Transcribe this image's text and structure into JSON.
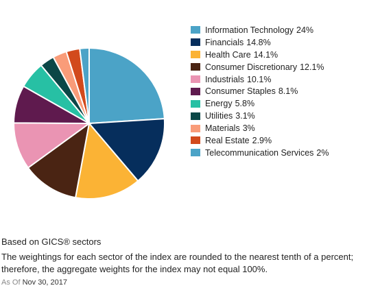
{
  "chart_data": {
    "type": "pie",
    "title": "",
    "legend_position": "right",
    "series": [
      {
        "values": [
          {
            "label": "Information Technology",
            "value": 24,
            "value_label": "24%",
            "color": "#4ba3c7"
          },
          {
            "label": "Financials",
            "value": 14.8,
            "value_label": "14.8%",
            "color": "#062e5c"
          },
          {
            "label": "Health Care",
            "value": 14.1,
            "value_label": "14.1%",
            "color": "#fbb335"
          },
          {
            "label": "Consumer Discretionary",
            "value": 12.1,
            "value_label": "12.1%",
            "color": "#4a2413"
          },
          {
            "label": "Industrials",
            "value": 10.1,
            "value_label": "10.1%",
            "color": "#ea94b3"
          },
          {
            "label": "Consumer Staples",
            "value": 8.1,
            "value_label": "8.1%",
            "color": "#5f1a4e"
          },
          {
            "label": "Energy",
            "value": 5.8,
            "value_label": "5.8%",
            "color": "#27c0a4"
          },
          {
            "label": "Utilities",
            "value": 3.1,
            "value_label": "3.1%",
            "color": "#0b4747"
          },
          {
            "label": "Materials",
            "value": 3,
            "value_label": "3%",
            "color": "#f99c79"
          },
          {
            "label": "Real Estate",
            "value": 2.9,
            "value_label": "2.9%",
            "color": "#d24a1c"
          },
          {
            "label": "Telecommunication Services",
            "value": 2,
            "value_label": "2%",
            "color": "#4ba3c7"
          }
        ]
      }
    ]
  },
  "footnotes": {
    "gics": "Based on GICS® sectors",
    "rounding": "The weightings for each sector of the index are rounded to the nearest tenth of a percent; therefore, the aggregate weights for the index may not equal 100%.",
    "as_of_label": "As Of",
    "as_of_date": "Nov 30, 2017"
  }
}
